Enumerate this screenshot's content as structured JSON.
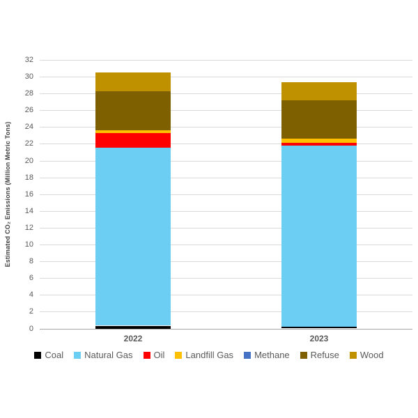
{
  "chart_data": {
    "type": "bar",
    "stacked": true,
    "categories": [
      "2022",
      "2023"
    ],
    "series": [
      {
        "name": "Coal",
        "color": "#000000",
        "values": [
          0.3,
          0.2
        ]
      },
      {
        "name": "Natural Gas",
        "color": "#6BCEF2",
        "values": [
          21.2,
          21.6
        ]
      },
      {
        "name": "Oil",
        "color": "#FF0000",
        "values": [
          1.75,
          0.35
        ]
      },
      {
        "name": "Landfill Gas",
        "color": "#FFC000",
        "values": [
          0.35,
          0.5
        ]
      },
      {
        "name": "Methane",
        "color": "#4472C4",
        "values": [
          0.0,
          0.0
        ]
      },
      {
        "name": "Refuse",
        "color": "#7F6000",
        "values": [
          4.65,
          4.55
        ]
      },
      {
        "name": "Wood",
        "color": "#BF9000",
        "values": [
          2.25,
          2.15
        ]
      }
    ],
    "totals": [
      30.5,
      29.35
    ],
    "xlabel": "",
    "ylabel": "Estimated CO₂ Emissions (Million Metric Tons)",
    "ylim": [
      0,
      32
    ],
    "ytick_step": 2,
    "grid": true,
    "gridline_color": "#D9D9D9",
    "axis_line_color": "#A6A6A6",
    "tick_label_color": "#595959",
    "legend_position": "bottom"
  }
}
